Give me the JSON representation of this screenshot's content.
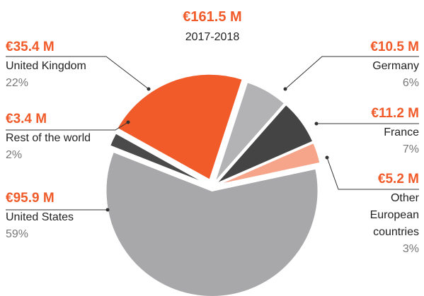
{
  "chart_data": {
    "type": "pie",
    "title": "€161.5 M",
    "subtitle": "2017-2018",
    "categories": [
      "Germany",
      "France",
      "Other European countries",
      "United States",
      "Rest of the world",
      "United Kingdom"
    ],
    "values": [
      10.5,
      11.2,
      5.2,
      95.9,
      3.4,
      35.4
    ],
    "value_labels": [
      "€10.5 M",
      "€11.2 M",
      "€5.2 M",
      "€95.9 M",
      "€3.4 M",
      "€35.4 M"
    ],
    "share_labels": [
      "6%",
      "7%",
      "3%",
      "59%",
      "2%",
      "22%"
    ],
    "colors": [
      "#b3b3b5",
      "#444444",
      "#f7a58a",
      "#a8a8aa",
      "#4a4a4a",
      "#f15a29"
    ]
  }
}
